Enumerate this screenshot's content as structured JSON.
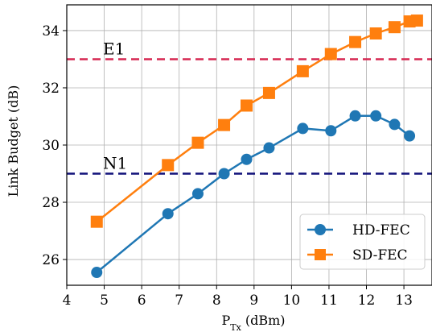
{
  "chart_data": {
    "type": "line",
    "xlabel_main": "P",
    "xlabel_sub": "Tx",
    "xlabel_rest": " (dBm)",
    "ylabel": "Link Budget (dB)",
    "xlim": [
      4,
      13.75
    ],
    "ylim": [
      25.1,
      34.9
    ],
    "xticks": [
      4,
      5,
      6,
      7,
      8,
      9,
      10,
      11,
      12,
      13
    ],
    "yticks": [
      26,
      28,
      30,
      32,
      34
    ],
    "grid": true,
    "legend_position": "bottom-right",
    "series": [
      {
        "name": "HD-FEC",
        "color": "#1f77b4",
        "marker": "circle",
        "x": [
          4.8,
          6.7,
          7.5,
          8.2,
          8.8,
          9.4,
          10.3,
          11.05,
          11.7,
          12.25,
          12.75,
          13.15
        ],
        "values": [
          25.55,
          27.6,
          28.3,
          29.0,
          29.5,
          29.9,
          30.58,
          30.5,
          31.02,
          31.02,
          30.72,
          30.32
        ]
      },
      {
        "name": "SD-FEC",
        "color": "#ff7f0e",
        "marker": "square",
        "x": [
          4.8,
          6.7,
          7.5,
          8.2,
          8.8,
          9.4,
          10.3,
          11.05,
          11.7,
          12.25,
          12.75,
          13.15,
          13.35
        ],
        "values": [
          27.32,
          29.3,
          30.08,
          30.7,
          31.38,
          31.82,
          32.58,
          33.18,
          33.6,
          33.9,
          34.12,
          34.32,
          34.35
        ]
      }
    ],
    "reference_lines": [
      {
        "label": "E1",
        "y": 33.0,
        "color": "#d62750"
      },
      {
        "label": "N1",
        "y": 29.0,
        "color": "#10107a"
      }
    ]
  }
}
